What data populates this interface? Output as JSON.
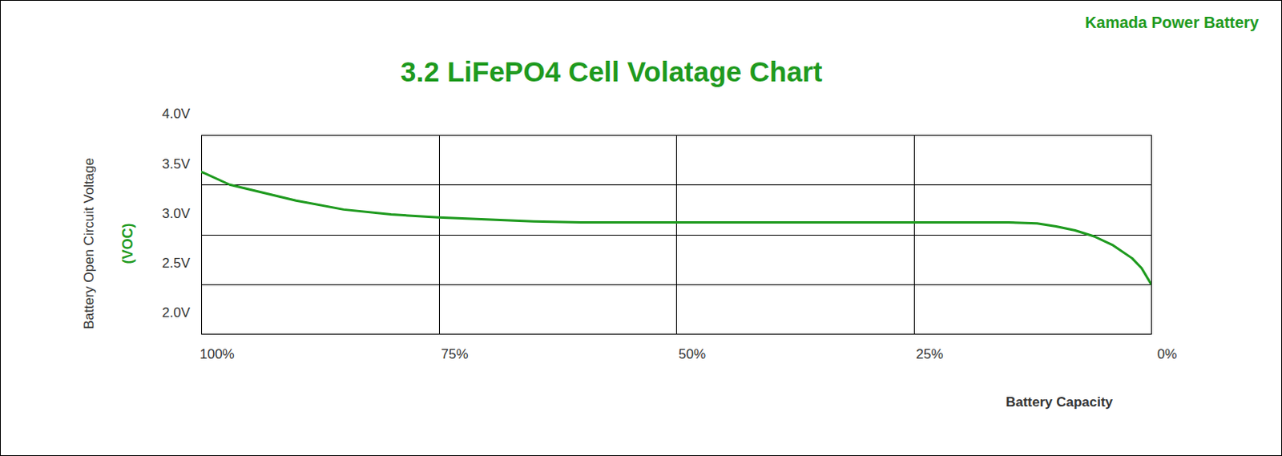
{
  "chart_data": {
    "type": "line",
    "title": "3.2 LiFePO4 Cell Volatage Chart",
    "annotations": [
      "Kamada Power Battery"
    ],
    "x_label": "Battery Capacity",
    "y_label": [
      "Battery Open Circuit Voltage",
      "(VOC)"
    ],
    "x": [
      100,
      97,
      90,
      85,
      80,
      75,
      70,
      65,
      60,
      50,
      40,
      30,
      20,
      15,
      12,
      10,
      8,
      6,
      4,
      2,
      1,
      0
    ],
    "values": [
      3.63,
      3.5,
      3.34,
      3.25,
      3.2,
      3.17,
      3.15,
      3.13,
      3.12,
      3.12,
      3.12,
      3.12,
      3.12,
      3.12,
      3.11,
      3.08,
      3.04,
      2.98,
      2.89,
      2.76,
      2.66,
      2.5
    ],
    "color": "#1e9a1e",
    "xlim": [
      100,
      0
    ],
    "xticks": [
      {
        "value": 100,
        "label": "100%"
      },
      {
        "value": 75,
        "label": "75%"
      },
      {
        "value": 50,
        "label": "50%"
      },
      {
        "value": 25,
        "label": "25%"
      },
      {
        "value": 0,
        "label": "0%"
      }
    ],
    "ylim": [
      2.0,
      4.0
    ],
    "yticks": [
      {
        "value": 2.0,
        "label": "2.0V"
      },
      {
        "value": 2.5,
        "label": "2.5V"
      },
      {
        "value": 3.0,
        "label": "3.0V"
      },
      {
        "value": 3.5,
        "label": "3.5V"
      },
      {
        "value": 4.0,
        "label": "4.0V"
      }
    ],
    "grid": true
  }
}
